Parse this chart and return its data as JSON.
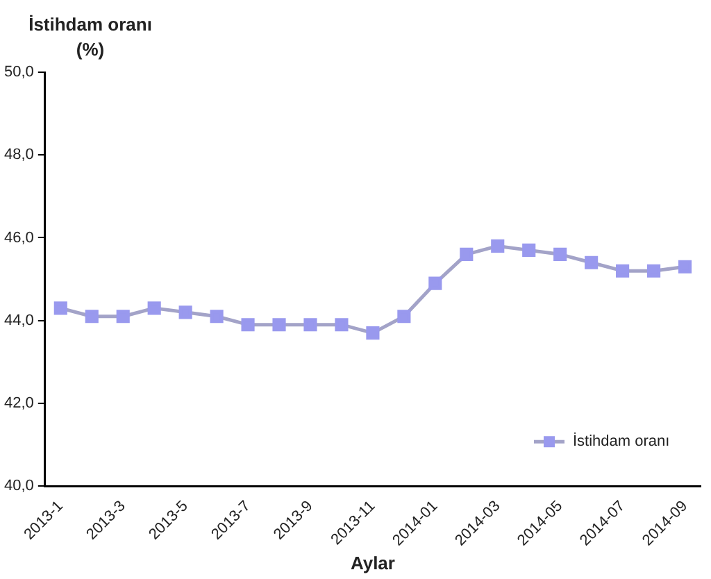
{
  "chart_data": {
    "type": "line",
    "ylabel": "İstihdam oranı (%)",
    "xlabel": "Aylar",
    "categories": [
      "2013-1",
      null,
      "2013-3",
      null,
      "2013-5",
      null,
      "2013-7",
      null,
      "2013-9",
      null,
      "2013-11",
      null,
      "2014-01",
      null,
      "2014-03",
      null,
      "2014-05",
      null,
      "2014-07",
      null,
      "2014-09"
    ],
    "series": [
      {
        "name": "İstihdam oranı",
        "color": "#9999ee",
        "values": [
          44.3,
          44.1,
          44.1,
          44.3,
          44.2,
          44.1,
          43.9,
          43.9,
          43.9,
          43.9,
          43.7,
          44.1,
          44.9,
          45.6,
          45.8,
          45.7,
          45.6,
          45.4,
          45.2,
          45.2,
          45.3
        ]
      }
    ],
    "ylim": [
      40,
      50
    ],
    "yticks": [
      {
        "value": 40,
        "label": "40,0"
      },
      {
        "value": 42,
        "label": "42,0"
      },
      {
        "value": 44,
        "label": "44,0"
      },
      {
        "value": 46,
        "label": "46,0"
      },
      {
        "value": 48,
        "label": "48,0"
      },
      {
        "value": 50,
        "label": "50,0"
      }
    ],
    "grid": false,
    "legend": "bottom right",
    "marker": "square",
    "line_style": "solid"
  }
}
